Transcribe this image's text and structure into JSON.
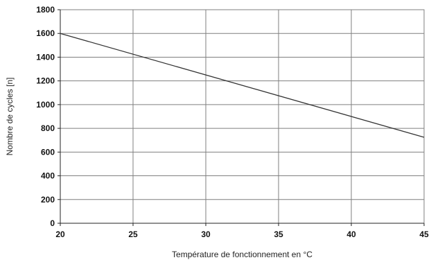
{
  "chart_data": {
    "type": "line",
    "xlabel": "Température de fonctionnement en °C",
    "ylabel": "Nombre de cycles [n]",
    "xlim": [
      20,
      45
    ],
    "ylim": [
      0,
      1800
    ],
    "x_ticks": [
      20,
      25,
      30,
      35,
      40,
      45
    ],
    "y_ticks": [
      0,
      200,
      400,
      600,
      800,
      1000,
      1200,
      1400,
      1600,
      1800
    ],
    "grid": true,
    "legend": "none",
    "series": [
      {
        "x": [
          20,
          45
        ],
        "y": [
          1600,
          725
        ],
        "color": "#333333"
      }
    ]
  }
}
